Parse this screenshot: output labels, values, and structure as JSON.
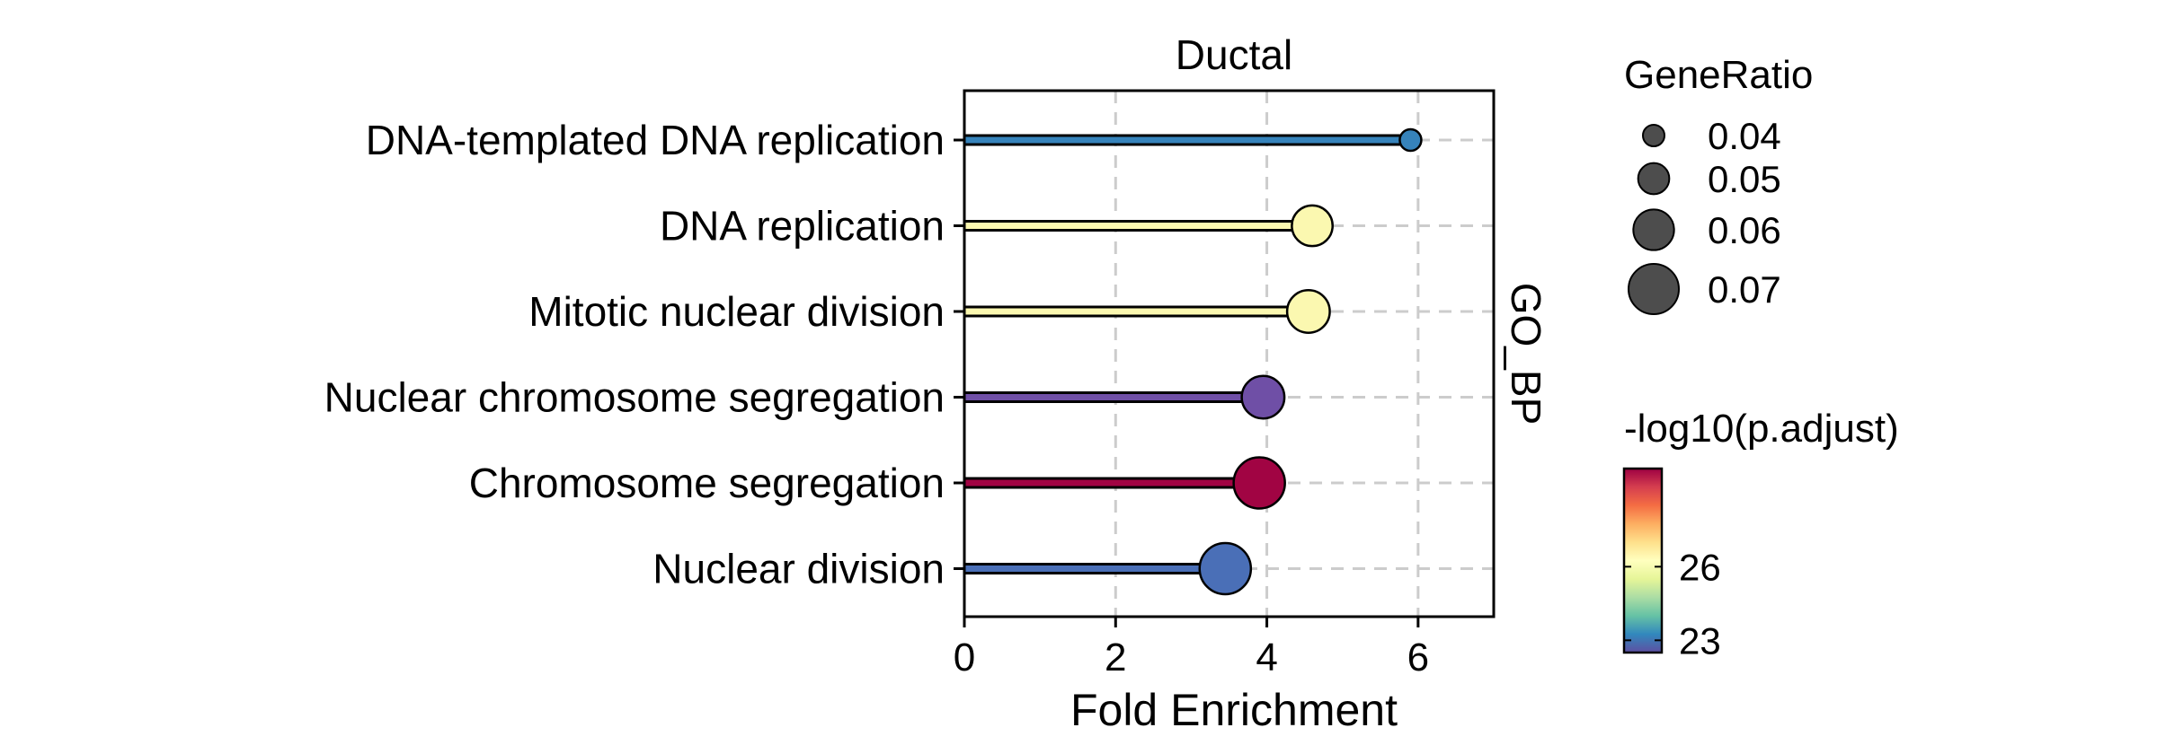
{
  "chart_data": {
    "type": "lollipop",
    "facet_title": "Ductal",
    "strip_label": "GO_BP",
    "xlabel": "Fold Enrichment",
    "ylabel": "",
    "xlim": [
      0,
      7
    ],
    "xticks": [
      0,
      2,
      4,
      6
    ],
    "grid": true,
    "categories": [
      "DNA-templated DNA replication",
      "DNA replication",
      "Mitotic nuclear division",
      "Nuclear chromosome segregation",
      "Chromosome segregation",
      "Nuclear division"
    ],
    "fold_enrichment": [
      5.9,
      4.6,
      4.55,
      3.95,
      3.9,
      3.45
    ],
    "gene_ratio": [
      0.04,
      0.06,
      0.062,
      0.062,
      0.071,
      0.071
    ],
    "neg_log10_padj": [
      23.2,
      26.1,
      26.1,
      22.5,
      29.6,
      23.1
    ],
    "colors": [
      "#3683bb",
      "#fbf8b0",
      "#fbf8b0",
      "#6f4fa6",
      "#a10443",
      "#4a6fb7"
    ],
    "size_legend": {
      "title": "GeneRatio",
      "values": [
        0.04,
        0.05,
        0.06,
        0.07
      ],
      "labels": [
        "0.04",
        "0.05",
        "0.06",
        "0.07"
      ]
    },
    "color_legend": {
      "title": "-log10(p.adjust)",
      "range": [
        22.5,
        30
      ],
      "ticks": [
        23,
        26
      ],
      "tick_labels": [
        "23",
        "26"
      ],
      "gradient": [
        "#5e4fa2",
        "#3288bd",
        "#66c2a5",
        "#abdda4",
        "#e6f598",
        "#ffffbf",
        "#fee08b",
        "#fdae61",
        "#f46d43",
        "#d53e4f",
        "#9e0142"
      ]
    }
  }
}
